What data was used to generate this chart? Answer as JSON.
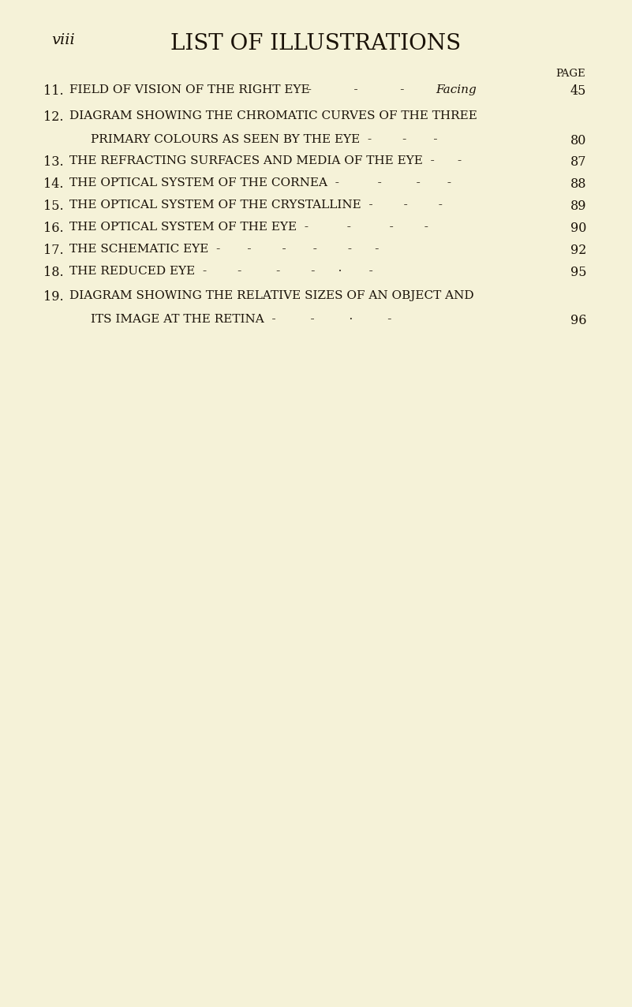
{
  "bg_color": "#f5f2d8",
  "text_color": "#1a1208",
  "page_label": "viii",
  "title": "LIST OF ILLUSTRATIONS",
  "col_header": "PAGE",
  "entries": [
    {
      "num": "11.",
      "text_parts": [
        {
          "text": "FIELD OF VISION OF THE RIGHT EYE",
          "style": "small_caps"
        },
        {
          "text": "  -",
          "style": "normal"
        },
        {
          "text": "      -",
          "style": "normal"
        },
        {
          "text": "     - ",
          "style": "normal"
        },
        {
          "text": "Facing",
          "style": "italic"
        },
        {
          "text": " 45",
          "style": "normal"
        }
      ],
      "line1": "FIELD OF VISION OF THE RIGHT EYE  -        -      - ​Facing 45",
      "page": "45",
      "facing": true,
      "indent": false
    },
    {
      "num": "12.",
      "line1": "DIAGRAM SHOWING THE CHROMATIC CURVES OF THE THREE",
      "line2": "PRIMARY COLOURS AS SEEN BY THE EYE   -      -    - 80",
      "page": "80",
      "facing": false,
      "indent": false,
      "multiline": true
    },
    {
      "num": "13.",
      "line1": "THE REFRACTING SURFACES AND MEDIA OF THE EYE -   - 87",
      "page": "87",
      "facing": false,
      "indent": false
    },
    {
      "num": "14.",
      "line1": "THE OPTICAL SYSTEM OF THE CORNEA -      -     -   - 88",
      "page": "88",
      "facing": false,
      "indent": false
    },
    {
      "num": "15.",
      "line1": "THE OPTICAL SYSTEM OF THE CRYSTALLINE   -    -   - 89",
      "page": "89",
      "facing": false,
      "indent": false
    },
    {
      "num": "16.",
      "line1": "THE OPTICAL SYSTEM OF THE EYE    -     -     -   - 90",
      "page": "90",
      "facing": false,
      "indent": false
    },
    {
      "num": "17.",
      "line1": "THE SCHEMATIC EYE    -     -     -     -     -   - 92",
      "page": "92",
      "facing": false,
      "indent": false
    },
    {
      "num": "18.",
      "line1": "THE REDUCED EYE    -      -      -      -    ·   - 95",
      "page": "95",
      "facing": false,
      "indent": false
    },
    {
      "num": "19.",
      "line1": "DIAGRAM SHOWING THE RELATIVE SIZES OF AN OBJECT AND",
      "line2": "ITS IMAGE AT THE RETINA   -      -      ·     -   - 96",
      "page": "96",
      "facing": false,
      "indent": false,
      "multiline": true
    }
  ],
  "figsize": [
    8.01,
    12.77
  ],
  "dpi": 100
}
